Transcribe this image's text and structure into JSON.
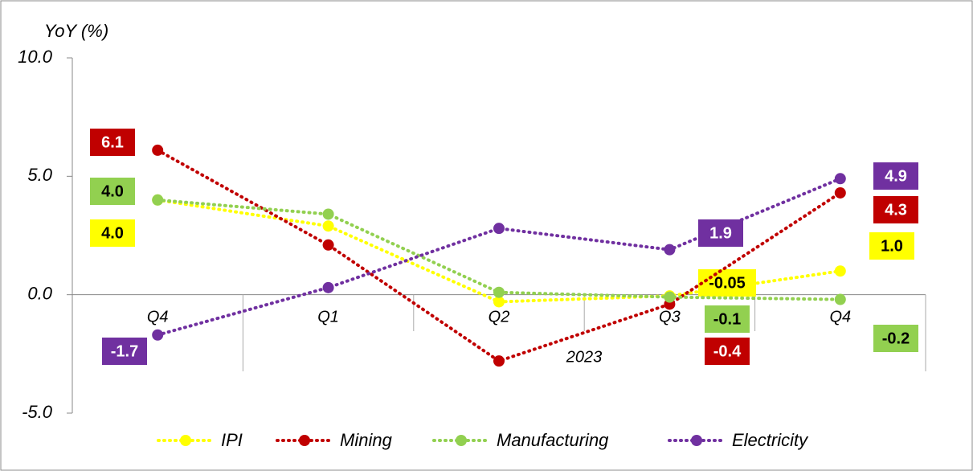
{
  "chart_data": {
    "type": "line",
    "y_label": "YoY (%)",
    "x_group_label": "2023",
    "categories": [
      "Q4",
      "Q1",
      "Q2",
      "Q3",
      "Q4"
    ],
    "ylim": [
      -5,
      10
    ],
    "yticks": [
      {
        "value": -5,
        "label": "-5.0"
      },
      {
        "value": 0,
        "label": "0.0"
      },
      {
        "value": 5,
        "label": "5.0"
      },
      {
        "value": 10,
        "label": "10.0"
      }
    ],
    "legend": "bottom",
    "series": [
      {
        "name": "IPI",
        "color": "#ffff00",
        "values": [
          4.0,
          2.9,
          -0.3,
          -0.05,
          1.0
        ],
        "value_labels": [
          "4.0",
          null,
          null,
          "-0.05",
          "1.0"
        ]
      },
      {
        "name": "Mining",
        "color": "#c00000",
        "values": [
          6.1,
          2.1,
          -2.8,
          -0.4,
          4.3
        ],
        "value_labels": [
          "6.1",
          null,
          null,
          "-0.4",
          "4.3"
        ]
      },
      {
        "name": "Manufacturing",
        "color": "#92d050",
        "values": [
          4.0,
          3.4,
          0.1,
          -0.1,
          -0.2
        ],
        "value_labels": [
          "4.0",
          null,
          null,
          "-0.1",
          "-0.2"
        ]
      },
      {
        "name": "Electricity",
        "color": "#7030a0",
        "values": [
          -1.7,
          0.3,
          2.8,
          1.9,
          4.9
        ],
        "value_labels": [
          "-1.7",
          null,
          null,
          "1.9",
          "4.9"
        ]
      }
    ]
  }
}
